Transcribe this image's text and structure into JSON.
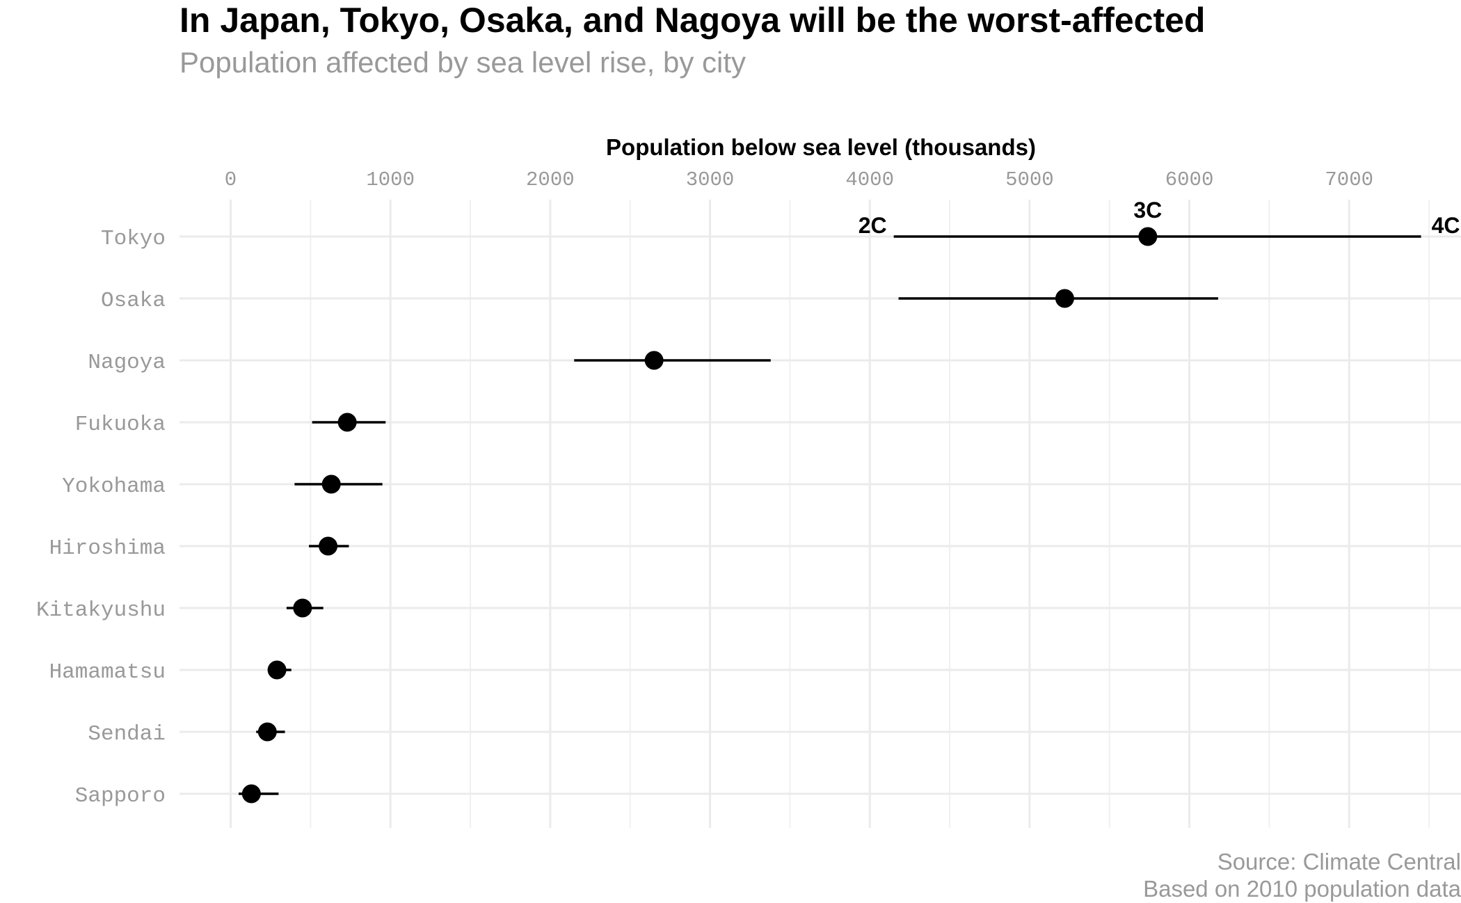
{
  "title": "In Japan, Tokyo, Osaka, and Nagoya will be the worst-affected",
  "subtitle": "Population affected by sea level rise, by city",
  "caption": {
    "line1": "Source: Climate Central",
    "line2": "Based on 2010 population data"
  },
  "chart_data": {
    "type": "scatter",
    "title": "In Japan, Tokyo, Osaka, and Nagoya will be the worst-affected",
    "subtitle": "Population affected by sea level rise, by city",
    "xlabel": "Population below sea level (thousands)",
    "ylabel": "",
    "xlim": [
      -320,
      7700
    ],
    "x_ticks": [
      0,
      1000,
      2000,
      3000,
      4000,
      5000,
      6000,
      7000
    ],
    "x_tick_labels": [
      "0",
      "1000",
      "2000",
      "3000",
      "4000",
      "5000",
      "6000",
      "7000"
    ],
    "grid": true,
    "categories": [
      "Tokyo",
      "Osaka",
      "Nagoya",
      "Fukuoka",
      "Yokohama",
      "Hiroshima",
      "Kitakyushu",
      "Hamamatsu",
      "Sendai",
      "Sapporo"
    ],
    "series": [
      {
        "name": "2C",
        "values": [
          4150,
          4180,
          2150,
          510,
          400,
          490,
          350,
          250,
          160,
          50
        ]
      },
      {
        "name": "3C",
        "values": [
          5740,
          5220,
          2650,
          730,
          630,
          610,
          450,
          290,
          230,
          130
        ]
      },
      {
        "name": "4C",
        "values": [
          7450,
          6180,
          3380,
          970,
          950,
          740,
          580,
          380,
          340,
          300
        ]
      }
    ],
    "annotations": [
      {
        "text": "2C",
        "city": "Tokyo",
        "x": 4150
      },
      {
        "text": "3C",
        "city": "Tokyo",
        "x": 5740
      },
      {
        "text": "4C",
        "city": "Tokyo",
        "x": 7450
      }
    ]
  }
}
